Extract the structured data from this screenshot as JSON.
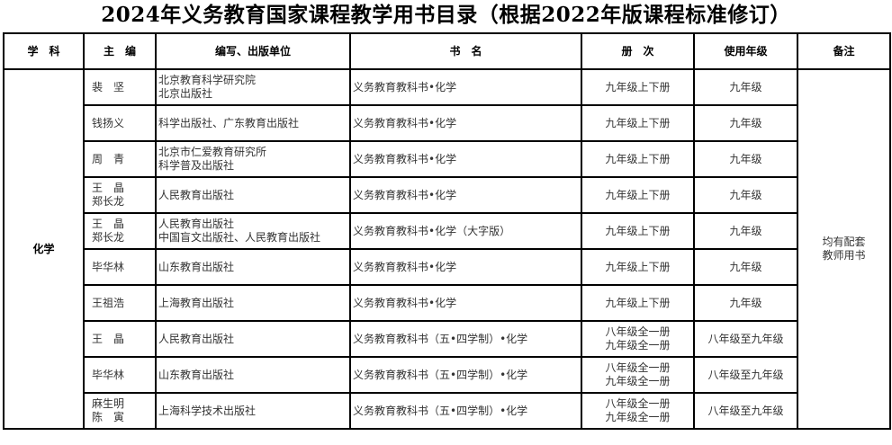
{
  "title": "2024年义务教育国家课程教学用书目录（根据2022年版课程标准修订）",
  "headers": [
    "学　科",
    "主　编",
    "编写、出版单位",
    "书　名",
    "册　次",
    "使用年级",
    "备注"
  ],
  "subject": "化学",
  "note": [
    "均有配套",
    "教师用书"
  ],
  "rows": [
    {
      "editors": [
        "裴　坚"
      ],
      "publishers": [
        "北京教育科学研究院",
        "北京出版社"
      ],
      "book": "义务教育教科书•化学",
      "volumes": [
        "九年级上下册"
      ],
      "grade": "九年级"
    },
    {
      "editors": [
        "钱扬义"
      ],
      "publishers": [
        "科学出版社、广东教育出版社"
      ],
      "book": "义务教育教科书•化学",
      "volumes": [
        "九年级上下册"
      ],
      "grade": "九年级"
    },
    {
      "editors": [
        "周　青"
      ],
      "publishers": [
        "北京市仁爱教育研究所",
        "科学普及出版社"
      ],
      "book": "义务教育教科书•化学",
      "volumes": [
        "九年级上下册"
      ],
      "grade": "九年级"
    },
    {
      "editors": [
        "王　晶",
        "郑长龙"
      ],
      "publishers": [
        "人民教育出版社"
      ],
      "book": "义务教育教科书•化学",
      "volumes": [
        "九年级上下册"
      ],
      "grade": "九年级"
    },
    {
      "editors": [
        "王　晶",
        "郑长龙"
      ],
      "publishers": [
        "人民教育出版社",
        "中国盲文出版社、人民教育出版社"
      ],
      "book": "义务教育教科书•化学（大字版）",
      "volumes": [
        "九年级上下册"
      ],
      "grade": "九年级"
    },
    {
      "editors": [
        "毕华林"
      ],
      "publishers": [
        "山东教育出版社"
      ],
      "book": "义务教育教科书•化学",
      "volumes": [
        "九年级上下册"
      ],
      "grade": "九年级"
    },
    {
      "editors": [
        "王祖浩"
      ],
      "publishers": [
        "上海教育出版社"
      ],
      "book": "义务教育教科书•化学",
      "volumes": [
        "九年级上下册"
      ],
      "grade": "九年级"
    },
    {
      "editors": [
        "王　晶"
      ],
      "publishers": [
        "人民教育出版社"
      ],
      "book": "义务教育教科书（五•四学制）•化学",
      "volumes": [
        "八年级全一册",
        "九年级全一册"
      ],
      "grade": "八年级至九年级"
    },
    {
      "editors": [
        "毕华林"
      ],
      "publishers": [
        "山东教育出版社"
      ],
      "book": "义务教育教科书（五•四学制）•化学",
      "volumes": [
        "八年级全一册",
        "九年级全一册"
      ],
      "grade": "八年级至九年级"
    },
    {
      "editors": [
        "麻生明",
        "陈　寅"
      ],
      "publishers": [
        "上海科学技术出版社"
      ],
      "book": "义务教育教科书（五•四学制）•化学",
      "volumes": [
        "八年级全一册",
        "九年级全一册"
      ],
      "grade": "八年级至九年级"
    }
  ]
}
